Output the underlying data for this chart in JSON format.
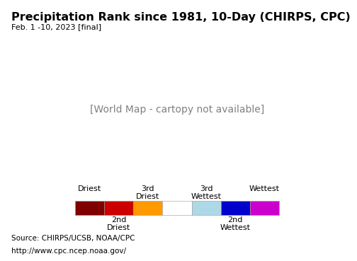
{
  "title": "Precipitation Rank since 1981, 10-Day (CHIRPS, CPC)",
  "subtitle": "Feb. 1 -10, 2023 [final]",
  "source_line1": "Source: CHIRPS/UCSB, NOAA/CPC",
  "source_line2": "http://www.cpc.ncep.noaa.gov/",
  "legend_colors": [
    "#800000",
    "#cc0000",
    "#ff9900",
    "#ffffff",
    "#add8e6",
    "#0000cc",
    "#cc00cc"
  ],
  "map_bg_color": "#b3ecff",
  "land_color": "#ffffff",
  "border_color": "#000000",
  "legend_bg_color": "#ffffff",
  "footer_bg_color": "#d8d8d8",
  "title_fontsize": 11.5,
  "subtitle_fontsize": 8,
  "source_fontsize": 7.5,
  "legend_fontsize": 8
}
